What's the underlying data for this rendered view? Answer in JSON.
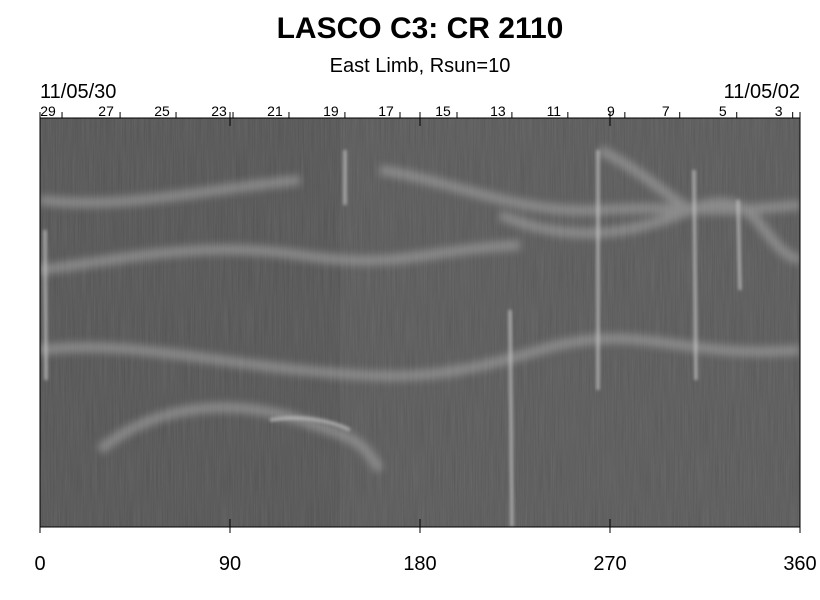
{
  "chart_data": {
    "type": "image",
    "title": "LASCO C3: CR 2110",
    "subtitle": "East Limb, Rsun=10",
    "x2_start_label": "11/05/30",
    "x2_end_label": "11/05/02",
    "xlim": [
      0,
      360
    ],
    "xticks": [
      0,
      90,
      180,
      270,
      360
    ],
    "x2lim": [
      0,
      360
    ],
    "x2ticks": [
      {
        "value": 3.8,
        "label": "29"
      },
      {
        "value": 31.3,
        "label": "27"
      },
      {
        "value": 57.8,
        "label": "25"
      },
      {
        "value": 84.8,
        "label": "23"
      },
      {
        "value": 111.3,
        "label": "21"
      },
      {
        "value": 137.8,
        "label": "19"
      },
      {
        "value": 163.9,
        "label": "17"
      },
      {
        "value": 190.9,
        "label": "15"
      },
      {
        "value": 216.9,
        "label": "13"
      },
      {
        "value": 243.4,
        "label": "11"
      },
      {
        "value": 270.4,
        "label": "9"
      },
      {
        "value": 296.4,
        "label": "7"
      },
      {
        "value": 323.4,
        "label": "5"
      },
      {
        "value": 349.9,
        "label": "3"
      }
    ]
  }
}
